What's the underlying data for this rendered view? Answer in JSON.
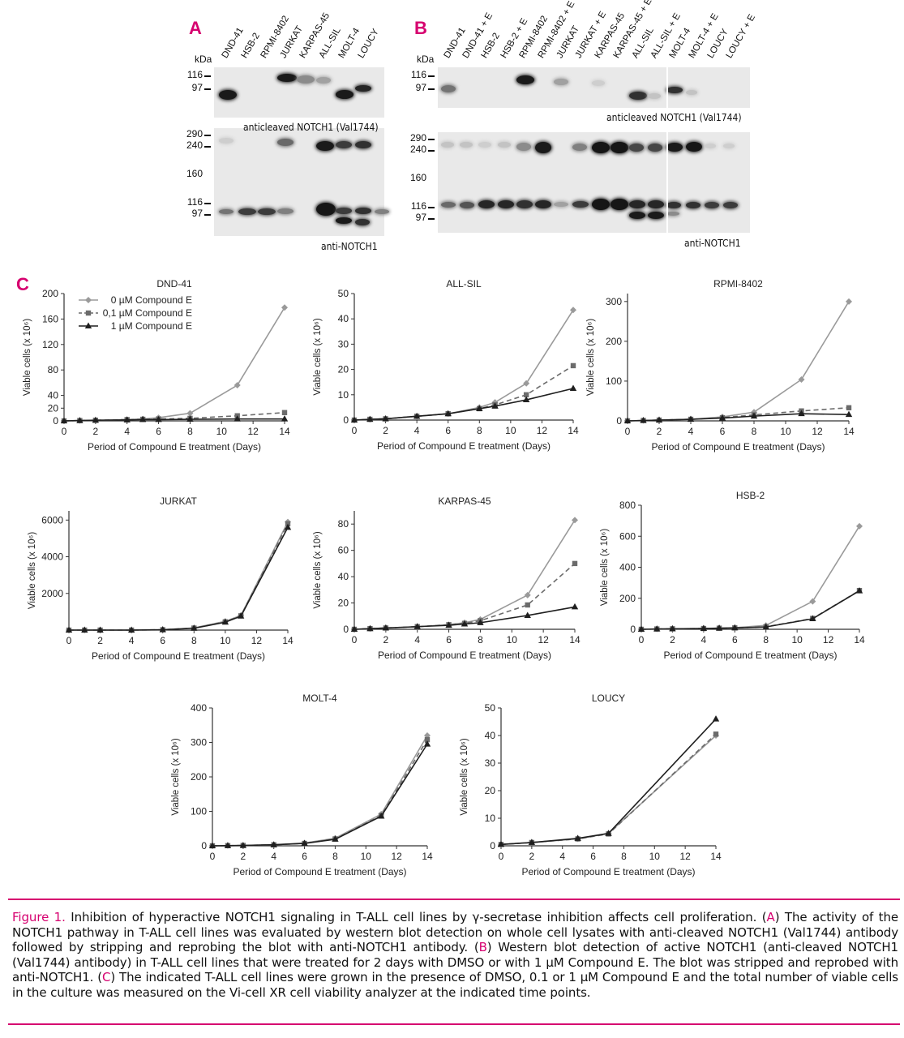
{
  "panels": {
    "a": {
      "letter": "A",
      "kda_label": "kDa",
      "lanes": [
        "DND-41",
        "HSB-2",
        "RPMI-8402",
        "JURKAT",
        "KARPAS-45",
        "ALL-SIL",
        "MOLT-4",
        "LOUCY"
      ],
      "top_markers": [
        "116",
        "97"
      ],
      "bottom_markers": [
        "290",
        "240",
        "160",
        "116",
        "97"
      ],
      "top_caption": "anticleaved NOTCH1 (Val1744)",
      "bottom_caption": "anti-NOTCH1"
    },
    "b": {
      "letter": "B",
      "kda_label": "kDa",
      "lanes": [
        "DND-41",
        "DND-41 + E",
        "HSB-2",
        "HSB-2 + E",
        "RPMI-8402",
        "RPMI-8402 + E",
        "JURKAT",
        "JURKAT + E",
        "KARPAS-45",
        "KARPAS-45 + E",
        "ALL-SIL",
        "ALL-SIL + E",
        "MOLT-4",
        "MOLT-4 + E",
        "LOUCY",
        "LOUCY + E"
      ],
      "top_markers": [
        "116",
        "97"
      ],
      "bottom_markers": [
        "290",
        "240",
        "160",
        "116",
        "97"
      ],
      "top_caption": "anticleaved NOTCH1 (Val1744)",
      "bottom_caption": "anti-NOTCH1"
    },
    "c": {
      "letter": "C"
    }
  },
  "legend": [
    {
      "label": "0 µM Compound E",
      "color": "#9a9a9a",
      "marker": "diamond",
      "dash": "solid"
    },
    {
      "label": "0,1 µM Compound E",
      "color": "#6b6b6b",
      "marker": "square",
      "dash": "dashed"
    },
    {
      "label": "1 µM Compound E",
      "color": "#1f1f1f",
      "marker": "triangle",
      "dash": "solid"
    }
  ],
  "colors": {
    "accent": "#d6006f",
    "s0": "#9a9a9a",
    "s01": "#6b6b6b",
    "s1": "#1f1f1f"
  },
  "chart_data": [
    {
      "type": "line",
      "title": "DND-41",
      "xlabel": "Period of Compound E treatment (Days)",
      "ylabel": "Viable cells (x 10⁶)",
      "xlim": [
        0,
        14
      ],
      "ylim": [
        0,
        200
      ],
      "yticks": [
        0,
        20,
        40,
        80,
        120,
        160,
        200
      ],
      "xticks": [
        0,
        2,
        4,
        6,
        8,
        10,
        12,
        14
      ],
      "series": [
        {
          "name": "0 µM Compound E",
          "x": [
            0,
            1,
            2,
            4,
            5,
            6,
            8,
            11,
            14
          ],
          "y": [
            0,
            0.5,
            1,
            2,
            3,
            5,
            12,
            56,
            178
          ]
        },
        {
          "name": "0,1 µM Compound E",
          "x": [
            0,
            1,
            2,
            4,
            5,
            6,
            8,
            11,
            14
          ],
          "y": [
            0,
            0.5,
            1,
            2,
            2.5,
            3,
            4,
            8,
            13
          ]
        },
        {
          "name": "1 µM Compound E",
          "x": [
            0,
            1,
            2,
            4,
            5,
            6,
            8,
            11,
            14
          ],
          "y": [
            0,
            0.5,
            1,
            1.5,
            2,
            2,
            2.5,
            3,
            3
          ]
        }
      ]
    },
    {
      "type": "line",
      "title": "ALL-SIL",
      "xlabel": "Period of Compound E treatment (Days)",
      "ylabel": "Viable cells (x 10⁶)",
      "xlim": [
        0,
        14
      ],
      "ylim": [
        0,
        50
      ],
      "yticks": [
        0,
        10,
        20,
        30,
        40,
        50
      ],
      "xticks": [
        0,
        2,
        4,
        6,
        8,
        10,
        12,
        14
      ],
      "series": [
        {
          "name": "0 µM Compound E",
          "x": [
            0,
            1,
            2,
            4,
            6,
            8,
            9,
            11,
            14
          ],
          "y": [
            0,
            0.3,
            0.5,
            1.5,
            2.5,
            5,
            7,
            14.5,
            43.5
          ]
        },
        {
          "name": "0,1 µM Compound E",
          "x": [
            0,
            1,
            2,
            4,
            6,
            8,
            9,
            11,
            14
          ],
          "y": [
            0,
            0.3,
            0.5,
            1.5,
            2.5,
            4.5,
            6,
            10,
            21.5
          ]
        },
        {
          "name": "1 µM Compound E",
          "x": [
            0,
            1,
            2,
            4,
            6,
            8,
            9,
            11,
            14
          ],
          "y": [
            0,
            0.3,
            0.5,
            1.5,
            2.5,
            4.5,
            5.5,
            8,
            12.5
          ]
        }
      ]
    },
    {
      "type": "line",
      "title": "RPMI-8402",
      "xlabel": "Period of Compound E treatment (Days)",
      "ylabel": "Viable cells (x 10⁶)",
      "xlim": [
        0,
        14
      ],
      "ylim": [
        0,
        320
      ],
      "yticks": [
        0,
        100,
        200,
        300
      ],
      "xticks": [
        0,
        2,
        4,
        6,
        8,
        10,
        12,
        14
      ],
      "series": [
        {
          "name": "0 µM Compound E",
          "x": [
            0,
            1,
            2,
            4,
            6,
            8,
            11,
            14
          ],
          "y": [
            0,
            1,
            2,
            4,
            10,
            22,
            104,
            300
          ]
        },
        {
          "name": "0,1 µM Compound E",
          "x": [
            0,
            1,
            2,
            4,
            6,
            8,
            11,
            14
          ],
          "y": [
            0,
            1,
            2,
            4,
            8,
            15,
            25,
            33
          ]
        },
        {
          "name": "1 µM Compound E",
          "x": [
            0,
            1,
            2,
            4,
            6,
            8,
            11,
            14
          ],
          "y": [
            0,
            1,
            2,
            4,
            7,
            12,
            18,
            16
          ]
        }
      ]
    },
    {
      "type": "line",
      "title": "JURKAT",
      "xlabel": "Period of Compound E treatment (Days)",
      "ylabel": "Viable cells (x 10⁶)",
      "xlim": [
        0,
        14
      ],
      "ylim": [
        0,
        6500
      ],
      "yticks": [
        2000,
        4000,
        6000
      ],
      "xticks": [
        0,
        2,
        4,
        6,
        8,
        10,
        12,
        14
      ],
      "series": [
        {
          "name": "0 µM Compound E",
          "x": [
            0,
            1,
            2,
            4,
            6,
            8,
            10,
            11,
            14
          ],
          "y": [
            0,
            0,
            0,
            0,
            20,
            120,
            480,
            800,
            5900
          ]
        },
        {
          "name": "0,1 µM Compound E",
          "x": [
            0,
            1,
            2,
            4,
            6,
            8,
            10,
            11,
            14
          ],
          "y": [
            0,
            0,
            0,
            0,
            20,
            110,
            450,
            780,
            5800
          ]
        },
        {
          "name": "1 µM Compound E",
          "x": [
            0,
            1,
            2,
            4,
            6,
            8,
            10,
            11,
            14
          ],
          "y": [
            0,
            0,
            0,
            0,
            20,
            100,
            430,
            760,
            5600
          ]
        }
      ]
    },
    {
      "type": "line",
      "title": "KARPAS-45",
      "xlabel": "Period of Compound E treatment (Days)",
      "ylabel": "Viable cells (x 10⁶)",
      "xlim": [
        0,
        14
      ],
      "ylim": [
        0,
        90
      ],
      "yticks": [
        0,
        20,
        40,
        60,
        80
      ],
      "xticks": [
        0,
        2,
        4,
        6,
        8,
        10,
        12,
        14
      ],
      "series": [
        {
          "name": "0 µM Compound E",
          "x": [
            0,
            1,
            2,
            4,
            6,
            7,
            8,
            11,
            14
          ],
          "y": [
            0,
            0.5,
            1,
            2,
            3.5,
            5,
            7.5,
            26,
            83
          ]
        },
        {
          "name": "0,1 µM Compound E",
          "x": [
            0,
            1,
            2,
            4,
            6,
            7,
            8,
            11,
            14
          ],
          "y": [
            0,
            0.5,
            1,
            2,
            3.5,
            4.5,
            6.5,
            18.5,
            50
          ]
        },
        {
          "name": "1 µM Compound E",
          "x": [
            0,
            1,
            2,
            4,
            6,
            7,
            8,
            11,
            14
          ],
          "y": [
            0,
            0.5,
            1,
            2,
            3,
            4,
            5,
            10.5,
            17
          ]
        }
      ]
    },
    {
      "type": "line",
      "title": "HSB-2",
      "xlabel": "Period of Compound E treatment (Days)",
      "ylabel": "Viable cells (x 10⁶)",
      "xlim": [
        0,
        14
      ],
      "ylim": [
        0,
        800
      ],
      "yticks": [
        0,
        200,
        400,
        600,
        800
      ],
      "xticks": [
        0,
        2,
        4,
        6,
        8,
        10,
        12,
        14
      ],
      "series": [
        {
          "name": "0 µM Compound E",
          "x": [
            0,
            1,
            2,
            4,
            5,
            6,
            8,
            11,
            14
          ],
          "y": [
            0,
            2,
            3,
            5,
            8,
            10,
            25,
            180,
            665
          ]
        },
        {
          "name": "0,1 µM Compound E",
          "x": [
            0,
            1,
            2,
            4,
            5,
            6,
            8,
            11,
            14
          ],
          "y": [
            0,
            2,
            3,
            5,
            7,
            9,
            16,
            70,
            250
          ]
        },
        {
          "name": "1 µM Compound E",
          "x": [
            0,
            1,
            2,
            4,
            5,
            6,
            8,
            11,
            14
          ],
          "y": [
            0,
            2,
            3,
            5,
            7,
            9,
            15,
            68,
            248
          ]
        }
      ]
    },
    {
      "type": "line",
      "title": "MOLT-4",
      "xlabel": "Period of Compound E treatment (Days)",
      "ylabel": "Viable cells (x 10⁶)",
      "xlim": [
        0,
        14
      ],
      "ylim": [
        0,
        400
      ],
      "yticks": [
        0,
        100,
        200,
        300,
        400
      ],
      "xticks": [
        0,
        2,
        4,
        6,
        8,
        10,
        12,
        14
      ],
      "series": [
        {
          "name": "0 µM Compound E",
          "x": [
            0,
            1,
            2,
            4,
            6,
            8,
            11,
            14
          ],
          "y": [
            0,
            0.5,
            1,
            3,
            8,
            22,
            92,
            320
          ]
        },
        {
          "name": "0,1 µM Compound E",
          "x": [
            0,
            1,
            2,
            4,
            6,
            8,
            11,
            14
          ],
          "y": [
            0,
            0.5,
            1,
            3,
            7,
            20,
            88,
            308
          ]
        },
        {
          "name": "1 µM Compound E",
          "x": [
            0,
            1,
            2,
            4,
            6,
            8,
            11,
            14
          ],
          "y": [
            0,
            0.5,
            1,
            3,
            7,
            19,
            86,
            295
          ]
        }
      ]
    },
    {
      "type": "line",
      "title": "LOUCY",
      "xlabel": "Period of Compound E treatment (Days)",
      "ylabel": "Viable cells (x 10⁶)",
      "xlim": [
        0,
        14
      ],
      "ylim": [
        0,
        50
      ],
      "yticks": [
        0,
        10,
        20,
        30,
        40,
        50
      ],
      "xticks": [
        0,
        2,
        4,
        6,
        8,
        10,
        12,
        14
      ],
      "series": [
        {
          "name": "0 µM Compound E",
          "x": [
            0,
            2,
            5,
            7,
            14
          ],
          "y": [
            0.5,
            1.2,
            2.5,
            4.5,
            40
          ]
        },
        {
          "name": "0,1 µM Compound E",
          "x": [
            0,
            2,
            5,
            7,
            14
          ],
          "y": [
            0.5,
            1.2,
            2.5,
            4.3,
            40.5
          ]
        },
        {
          "name": "1 µM Compound E",
          "x": [
            0,
            2,
            5,
            7,
            14
          ],
          "y": [
            0.5,
            1.2,
            2.7,
            4.5,
            46
          ]
        }
      ]
    }
  ],
  "caption": {
    "fig_label": "Figure 1.",
    "t1": " Inhibition of hyperactive NOTCH1 signaling in T-ALL cell lines by γ-secretase inhibition affects cell proliferation. (",
    "a": "A",
    "t2": ") The activity of the NOTCH1 pathway in T-ALL cell lines was evaluated by western blot detection on whole cell lysates with anti-cleaved NOTCH1 (Val1744) antibody followed by stripping and reprobing the blot with anti-NOTCH1 antibody. (",
    "b": "B",
    "t3": ") Western blot detection of active NOTCH1 (anti-cleaved NOTCH1 (Val1744) antibody) in T-ALL cell lines that were treated for 2 days with DMSO or with 1 µM Compound E. The blot was stripped and reprobed with anti-NOTCH1. (",
    "c": "C",
    "t4": ") The indicated T-ALL cell lines were grown in the presence of DMSO, 0.1 or 1 µM Compound E and the total number of viable cells in the culture was measured on the Vi-cell XR cell viability analyzer at the indicated time points."
  }
}
